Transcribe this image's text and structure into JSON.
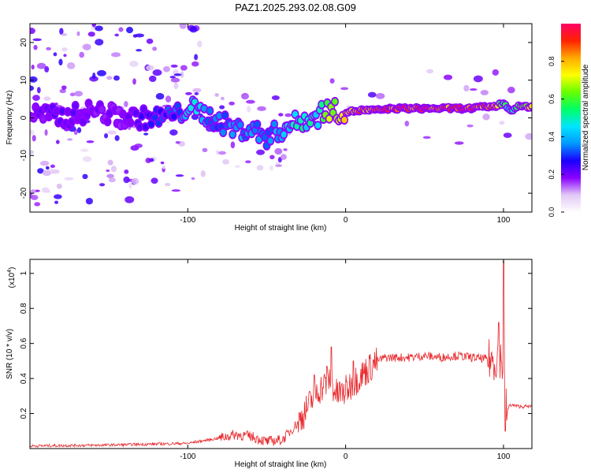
{
  "title": "PAZ1.2025.293.02.08.G09",
  "chart_data": [
    {
      "type": "heatmap",
      "title": "PAZ1.2025.293.02.08.G09",
      "xlabel": "Height of straight line (km)",
      "ylabel": "Frequency (Hz)",
      "xlim": [
        -200,
        118
      ],
      "ylim": [
        -25,
        25
      ],
      "xticks": [
        -100,
        0,
        100
      ],
      "xtick_labels": [
        "-100",
        "0",
        "100"
      ],
      "yticks": [
        -20,
        -10,
        0,
        10,
        20
      ],
      "ytick_labels": [
        "-20",
        "-10",
        "0",
        "10",
        "20"
      ],
      "ridge": {
        "description": "Frequency of dominant spectral component vs height",
        "x": [
          -195,
          -180,
          -160,
          -140,
          -120,
          -105,
          -100,
          -90,
          -80,
          -70,
          -60,
          -50,
          -40,
          -30,
          -22,
          -18,
          -15,
          -10,
          0,
          10,
          20,
          30,
          40,
          50,
          60,
          70,
          80,
          90,
          95,
          100,
          104,
          110,
          118
        ],
        "freq": [
          1,
          0,
          2,
          0,
          0,
          1,
          3,
          1,
          -1,
          -3,
          -3,
          -5,
          -3,
          -1,
          0,
          0,
          2,
          2,
          1.5,
          2,
          2,
          2.5,
          2.5,
          2.5,
          2.5,
          2.5,
          2.5,
          3,
          3,
          4,
          2,
          3,
          3
        ],
        "amplitude": [
          0.2,
          0.25,
          0.2,
          0.2,
          0.3,
          0.35,
          0.5,
          0.4,
          0.35,
          0.4,
          0.4,
          0.35,
          0.45,
          0.5,
          0.55,
          0.5,
          0.6,
          0.7,
          0.8,
          0.9,
          0.9,
          0.95,
          0.95,
          0.95,
          0.95,
          0.95,
          0.95,
          0.9,
          0.85,
          0.6,
          0.5,
          0.7,
          0.8
        ]
      }
    },
    {
      "type": "line",
      "xlabel": "Height of straight line (km)",
      "ylabel": "SNR (10 * v/v)",
      "y_multiplier_label": "(x10",
      "y_multiplier_exponent": "4",
      "xlim": [
        -200,
        118
      ],
      "ylim": [
        0,
        1.08
      ],
      "xticks": [
        -100,
        0,
        100
      ],
      "xtick_labels": [
        "-100",
        "0",
        "100"
      ],
      "yticks": [
        0.2,
        0.4,
        0.6,
        0.8,
        1
      ],
      "ytick_labels": [
        "0.2",
        "0.4",
        "0.6",
        "0.8",
        "1"
      ],
      "series": [
        {
          "name": "SNR",
          "color": "#e8282c",
          "x": [
            -200,
            -150,
            -100,
            -80,
            -70,
            -60,
            -50,
            -40,
            -35,
            -30,
            -25,
            -20,
            -18,
            -15,
            -12,
            -10,
            -8,
            -5,
            0,
            5,
            10,
            15,
            20,
            25,
            30,
            40,
            50,
            60,
            70,
            80,
            90,
            95,
            97,
            100,
            102,
            104,
            110,
            118
          ],
          "y": [
            0.015,
            0.02,
            0.03,
            0.06,
            0.08,
            0.07,
            0.04,
            0.05,
            0.1,
            0.15,
            0.22,
            0.3,
            0.33,
            0.35,
            0.38,
            0.4,
            0.35,
            0.3,
            0.33,
            0.38,
            0.42,
            0.46,
            0.5,
            0.52,
            0.52,
            0.52,
            0.53,
            0.52,
            0.53,
            0.52,
            0.51,
            0.5,
            0.55,
            0.45,
            0.2,
            0.25,
            0.24,
            0.24
          ],
          "spikes": [
            {
              "x": -20,
              "y": 0.42
            },
            {
              "x": -12,
              "y": 0.47
            },
            {
              "x": -9,
              "y": 0.58
            },
            {
              "x": -4,
              "y": 0.38
            },
            {
              "x": 5,
              "y": 0.5
            },
            {
              "x": 97,
              "y": 0.72
            },
            {
              "x": 100,
              "y": 1.07
            },
            {
              "x": 101,
              "y": 0.1
            }
          ]
        }
      ]
    }
  ],
  "colorbar": {
    "label": "Normalized spectral amplitude",
    "range": [
      0,
      1
    ],
    "ticks": [
      0.0,
      0.2,
      0.4,
      0.6,
      0.8
    ],
    "tick_labels": [
      "0.0",
      "0.2",
      "0.4",
      "0.6",
      "0.8"
    ],
    "colors": [
      "#ffffff",
      "#e2c8f5",
      "#8a00ff",
      "#1a00ff",
      "#0099ff",
      "#00e5ff",
      "#00ff66",
      "#66ff00",
      "#ffff00",
      "#ffaa00",
      "#ff2200",
      "#ff0066"
    ]
  }
}
